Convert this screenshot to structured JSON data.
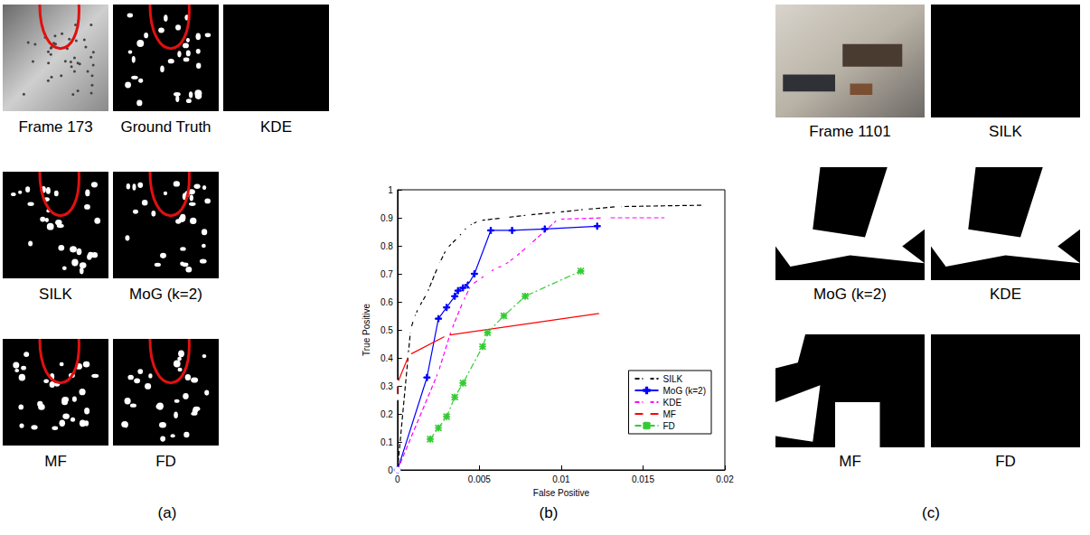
{
  "chart_data": {
    "type": "line",
    "x_label": "False Positive",
    "y_label": "True Positive",
    "xlim": [
      0,
      0.02
    ],
    "xticks": [
      0,
      0.005,
      0.01,
      0.015,
      0.02
    ],
    "ylim": [
      0,
      1
    ],
    "yticks": [
      0,
      0.1,
      0.2,
      0.3,
      0.4,
      0.5,
      0.6,
      0.7,
      0.8,
      0.9,
      1
    ],
    "grid": false,
    "legend": "lower right",
    "series": [
      {
        "name": "SILK",
        "color": "#000000",
        "marker": "circle",
        "line_style": "dashed",
        "x": [
          0,
          0.0008,
          0.001,
          0.0013,
          0.0018,
          0.0025,
          0.003,
          0.0037,
          0.004,
          0.0043,
          0.005,
          0.0065,
          0.008,
          0.0098,
          0.0115,
          0.0135,
          0.0188
        ],
        "values": [
          0,
          0.5,
          0.54,
          0.58,
          0.63,
          0.73,
          0.79,
          0.83,
          0.85,
          0.87,
          0.89,
          0.9,
          0.91,
          0.92,
          0.93,
          0.94,
          0.945
        ]
      },
      {
        "name": "MoG (k=2)",
        "color": "#0000ff",
        "marker": "plus",
        "line_style": "solid",
        "x": [
          0,
          0.0018,
          0.0025,
          0.003,
          0.0035,
          0.0037,
          0.004,
          0.0043,
          0.0047,
          0.0057,
          0.007,
          0.009,
          0.0122
        ],
        "values": [
          0,
          0.33,
          0.54,
          0.58,
          0.62,
          0.64,
          0.65,
          0.66,
          0.7,
          0.855,
          0.855,
          0.86,
          0.87
        ]
      },
      {
        "name": "KDE",
        "color": "#ff00ff",
        "marker": "diamond",
        "line_style": "dashed",
        "x": [
          0,
          0.0025,
          0.0033,
          0.004,
          0.0045,
          0.005,
          0.0055,
          0.006,
          0.0065,
          0.0072,
          0.008,
          0.0098,
          0.0127,
          0.0165
        ],
        "values": [
          0,
          0.35,
          0.5,
          0.6,
          0.66,
          0.68,
          0.7,
          0.72,
          0.73,
          0.76,
          0.8,
          0.895,
          0.9,
          0.9
        ]
      },
      {
        "name": "MF",
        "color": "#ff0000",
        "marker": "diamond",
        "line_style": "solid",
        "x": [
          0,
          0,
          0.0007,
          0.003,
          0.0125
        ],
        "values": [
          0.26,
          0.31,
          0.41,
          0.48,
          0.56
        ]
      },
      {
        "name": "FD",
        "color": "#33cc33",
        "marker": "asterisk",
        "line_style": "dashdot",
        "x": [
          0.002,
          0.0025,
          0.003,
          0.0035,
          0.004,
          0.0052,
          0.0055,
          0.0065,
          0.0078,
          0.0112
        ],
        "values": [
          0.11,
          0.15,
          0.19,
          0.26,
          0.31,
          0.44,
          0.49,
          0.55,
          0.62,
          0.71
        ]
      }
    ]
  },
  "panels": [
    {
      "label": "(a)",
      "captions": [
        "Frame 173",
        "Ground Truth",
        "KDE",
        "SILK",
        "MoG (k=2)",
        "MF",
        "FD"
      ]
    },
    {
      "label": "(b)"
    },
    {
      "label": "(c)",
      "captions": [
        "Frame 1101",
        "SILK",
        "MoG (k=2)",
        "KDE",
        "MF",
        "FD"
      ]
    }
  ]
}
